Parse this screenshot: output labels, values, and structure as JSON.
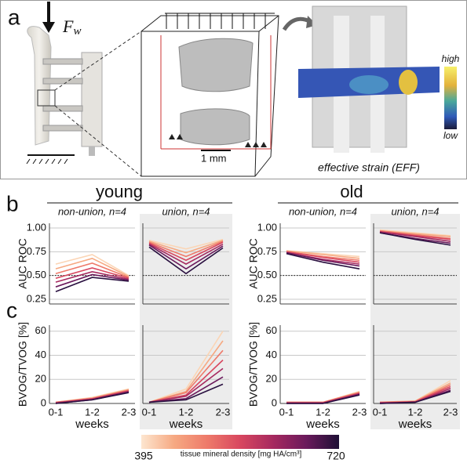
{
  "figure": {
    "panel_labels": [
      "a",
      "b",
      "c"
    ],
    "force": {
      "symbol": "F",
      "subscript": "w"
    },
    "scale_bar": "1 mm",
    "strain_high": "high",
    "strain_low": "low",
    "strain_caption": "effective strain (EFF)",
    "groups": [
      "young",
      "old"
    ],
    "colorbar": {
      "ticks": [
        395,
        720
      ],
      "label": "tissue mineral density [mg HA/cm³]",
      "colors": [
        "#fde6d0",
        "#f6a982",
        "#ee7a6a",
        "#d8475f",
        "#a6295f",
        "#6b1a5c",
        "#1e0f35"
      ]
    }
  },
  "chart_data": [
    {
      "type": "line",
      "subtitle": "non-union, n=4",
      "ylabel": "AUC ROC",
      "ylim": [
        0.2,
        1.05
      ],
      "yticks": [
        {
          "value": 0.25,
          "label": "0.25"
        },
        {
          "value": 0.5,
          "label": "0.50"
        },
        {
          "value": 0.75,
          "label": "0.75"
        },
        {
          "value": 1,
          "label": "1.00"
        }
      ],
      "ytick_labels": true,
      "refline": 0.5,
      "background": false,
      "series": [
        {
          "color": "#fbd5b5",
          "values": [
            0.62,
            0.72,
            0.5
          ]
        },
        {
          "color": "#f6a982",
          "values": [
            0.57,
            0.68,
            0.49
          ]
        },
        {
          "color": "#ee7a6a",
          "values": [
            0.52,
            0.63,
            0.48
          ]
        },
        {
          "color": "#d8475f",
          "values": [
            0.47,
            0.58,
            0.47
          ]
        },
        {
          "color": "#a6295f",
          "values": [
            0.43,
            0.54,
            0.46
          ]
        },
        {
          "color": "#6b1a5c",
          "values": [
            0.38,
            0.51,
            0.45
          ]
        },
        {
          "color": "#2a1040",
          "values": [
            0.33,
            0.48,
            0.44
          ]
        }
      ]
    },
    {
      "type": "line",
      "subtitle": "union, n=4",
      "ylim": [
        0.2,
        1.05
      ],
      "yticks": [
        0.25,
        0.5,
        0.75,
        1
      ],
      "ytick_labels": false,
      "refline": 0.5,
      "background": true,
      "series": [
        {
          "color": "#fbd5b5",
          "values": [
            0.87,
            0.78,
            0.88
          ]
        },
        {
          "color": "#f6a982",
          "values": [
            0.86,
            0.74,
            0.87
          ]
        },
        {
          "color": "#ee7a6a",
          "values": [
            0.85,
            0.7,
            0.86
          ]
        },
        {
          "color": "#d8475f",
          "values": [
            0.84,
            0.66,
            0.85
          ]
        },
        {
          "color": "#a6295f",
          "values": [
            0.83,
            0.62,
            0.83
          ]
        },
        {
          "color": "#6b1a5c",
          "values": [
            0.82,
            0.57,
            0.81
          ]
        },
        {
          "color": "#2a1040",
          "values": [
            0.8,
            0.52,
            0.79
          ]
        }
      ]
    },
    {
      "type": "line",
      "subtitle": "non-union, n=4",
      "ylabel": "AUC ROC",
      "ylim": [
        0.2,
        1.05
      ],
      "yticks": [
        {
          "value": 0.25,
          "label": "0.25"
        },
        {
          "value": 0.5,
          "label": "0.50"
        },
        {
          "value": 0.75,
          "label": "0.75"
        },
        {
          "value": 1,
          "label": "1.00"
        }
      ],
      "ytick_labels": true,
      "refline": 0.5,
      "background": false,
      "series": [
        {
          "color": "#fbd5b5",
          "values": [
            0.76,
            0.73,
            0.7
          ]
        },
        {
          "color": "#f6a982",
          "values": [
            0.76,
            0.72,
            0.68
          ]
        },
        {
          "color": "#ee7a6a",
          "values": [
            0.75,
            0.7,
            0.66
          ]
        },
        {
          "color": "#d8475f",
          "values": [
            0.75,
            0.69,
            0.64
          ]
        },
        {
          "color": "#a6295f",
          "values": [
            0.74,
            0.67,
            0.62
          ]
        },
        {
          "color": "#6b1a5c",
          "values": [
            0.74,
            0.66,
            0.6
          ]
        },
        {
          "color": "#2a1040",
          "values": [
            0.73,
            0.64,
            0.57
          ]
        }
      ]
    },
    {
      "type": "line",
      "subtitle": "union, n=4",
      "ylim": [
        0.2,
        1.05
      ],
      "yticks": [
        0.25,
        0.5,
        0.75,
        1
      ],
      "ytick_labels": false,
      "refline": 0.5,
      "background": true,
      "series": [
        {
          "color": "#fbd5b5",
          "values": [
            0.98,
            0.95,
            0.92
          ]
        },
        {
          "color": "#f6a982",
          "values": [
            0.97,
            0.94,
            0.91
          ]
        },
        {
          "color": "#ee7a6a",
          "values": [
            0.97,
            0.93,
            0.89
          ]
        },
        {
          "color": "#d8475f",
          "values": [
            0.96,
            0.92,
            0.88
          ]
        },
        {
          "color": "#a6295f",
          "values": [
            0.96,
            0.91,
            0.86
          ]
        },
        {
          "color": "#6b1a5c",
          "values": [
            0.95,
            0.89,
            0.84
          ]
        },
        {
          "color": "#2a1040",
          "values": [
            0.95,
            0.88,
            0.82
          ]
        }
      ]
    },
    {
      "type": "line",
      "categories": [
        "0-1",
        "1-2",
        "2-3"
      ],
      "xlabel": "weeks",
      "ylabel": "BVOG/TVOG [%]",
      "ylim": [
        0,
        65
      ],
      "yticks": [
        0,
        20,
        40,
        60
      ],
      "ytick_labels": true,
      "background": false,
      "series": [
        {
          "color": "#fbd5b5",
          "values": [
            1,
            5,
            12
          ]
        },
        {
          "color": "#f6a982",
          "values": [
            1,
            4.5,
            11.5
          ]
        },
        {
          "color": "#ee7a6a",
          "values": [
            1,
            4,
            11
          ]
        },
        {
          "color": "#d8475f",
          "values": [
            0.5,
            4,
            10.5
          ]
        },
        {
          "color": "#a6295f",
          "values": [
            0.5,
            3.5,
            10
          ]
        },
        {
          "color": "#6b1a5c",
          "values": [
            0,
            3,
            9.5
          ]
        },
        {
          "color": "#2a1040",
          "values": [
            0,
            3,
            9
          ]
        }
      ]
    },
    {
      "type": "line",
      "categories": [
        "0-1",
        "1-2",
        "2-3"
      ],
      "xlabel": "weeks",
      "ylim": [
        0,
        65
      ],
      "yticks": [
        0,
        20,
        40,
        60
      ],
      "ytick_labels": false,
      "background": true,
      "series": [
        {
          "color": "#fbd5b5",
          "values": [
            1,
            12,
            60
          ]
        },
        {
          "color": "#f6a982",
          "values": [
            1,
            10,
            52
          ]
        },
        {
          "color": "#ee7a6a",
          "values": [
            1,
            9,
            44
          ]
        },
        {
          "color": "#d8475f",
          "values": [
            1,
            7,
            36
          ]
        },
        {
          "color": "#a6295f",
          "values": [
            1,
            6,
            29
          ]
        },
        {
          "color": "#6b1a5c",
          "values": [
            1,
            4,
            22
          ]
        },
        {
          "color": "#2a1040",
          "values": [
            1,
            3,
            16
          ]
        }
      ]
    },
    {
      "type": "line",
      "categories": [
        "0-1",
        "1-2",
        "2-3"
      ],
      "xlabel": "weeks",
      "ylabel": "BVOG/TVOG [%]",
      "ylim": [
        0,
        65
      ],
      "yticks": [
        0,
        20,
        40,
        60
      ],
      "ytick_labels": true,
      "background": false,
      "series": [
        {
          "color": "#fbd5b5",
          "values": [
            1,
            1,
            10
          ]
        },
        {
          "color": "#f6a982",
          "values": [
            1,
            1,
            9.5
          ]
        },
        {
          "color": "#ee7a6a",
          "values": [
            1,
            1,
            9
          ]
        },
        {
          "color": "#d8475f",
          "values": [
            0.5,
            0.5,
            8.5
          ]
        },
        {
          "color": "#a6295f",
          "values": [
            0.5,
            0.5,
            8
          ]
        },
        {
          "color": "#6b1a5c",
          "values": [
            0,
            0,
            7.5
          ]
        },
        {
          "color": "#2a1040",
          "values": [
            0,
            0,
            7
          ]
        }
      ]
    },
    {
      "type": "line",
      "categories": [
        "0-1",
        "1-2",
        "2-3"
      ],
      "xlabel": "weeks",
      "ylim": [
        0,
        65
      ],
      "yticks": [
        0,
        20,
        40,
        60
      ],
      "ytick_labels": false,
      "background": true,
      "series": [
        {
          "color": "#fbd5b5",
          "values": [
            1,
            2,
            19
          ]
        },
        {
          "color": "#f6a982",
          "values": [
            1,
            2,
            17
          ]
        },
        {
          "color": "#ee7a6a",
          "values": [
            1,
            1.5,
            15.5
          ]
        },
        {
          "color": "#d8475f",
          "values": [
            0.5,
            1.5,
            14
          ]
        },
        {
          "color": "#a6295f",
          "values": [
            0.5,
            1,
            12.5
          ]
        },
        {
          "color": "#6b1a5c",
          "values": [
            0,
            1,
            11
          ]
        },
        {
          "color": "#2a1040",
          "values": [
            0,
            1,
            10
          ]
        }
      ]
    }
  ]
}
